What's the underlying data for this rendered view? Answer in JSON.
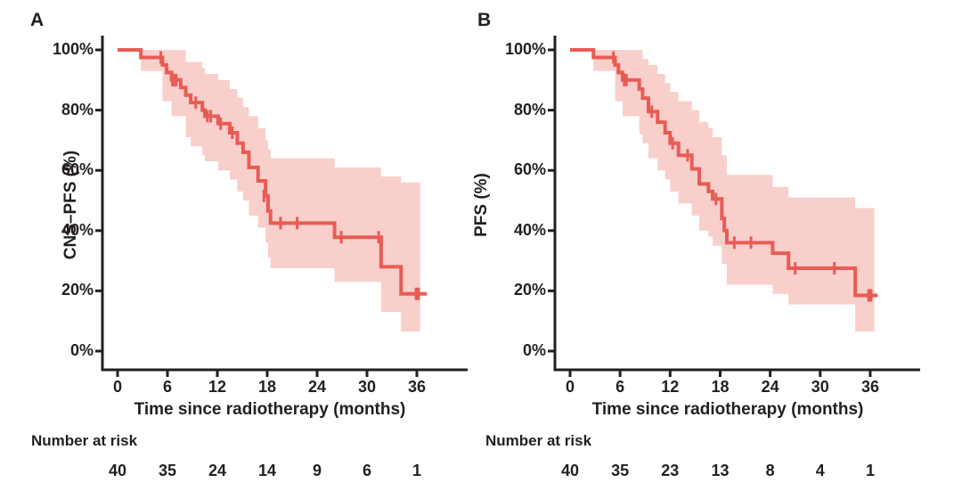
{
  "colors": {
    "curve": "#E85C55",
    "ci_band": "#F9CFCB",
    "axis_and_text": "#231F20",
    "background": "#FFFFFF"
  },
  "chart_data": [
    {
      "type": "line",
      "subtype": "kaplan_meier_step_curve_with_ci_band",
      "panel_label": "A",
      "ylabel": "CNS–PFS (%)",
      "x_axis": {
        "label": "Time since radiotherapy (months)",
        "ticks": [
          {
            "value": 0,
            "label": "0"
          },
          {
            "value": 6,
            "label": "6"
          },
          {
            "value": 12,
            "label": "12"
          },
          {
            "value": 18,
            "label": "18"
          },
          {
            "value": 24,
            "label": "24"
          },
          {
            "value": 30,
            "label": "30"
          },
          {
            "value": 36,
            "label": "36"
          }
        ],
        "xlim": [
          0,
          42
        ]
      },
      "y_axis": {
        "ticks": [
          {
            "value": 100,
            "label": "100%"
          },
          {
            "value": 80,
            "label": "80%"
          },
          {
            "value": 60,
            "label": "60%"
          },
          {
            "value": 40,
            "label": "40%"
          },
          {
            "value": 20,
            "label": "20%"
          },
          {
            "value": 0,
            "label": "0%"
          }
        ],
        "ylim": [
          0,
          100
        ]
      },
      "steps": [
        [
          0,
          100
        ],
        [
          2.8,
          97.5
        ],
        [
          5.4,
          95
        ],
        [
          5.9,
          92.5
        ],
        [
          6.5,
          90
        ],
        [
          7.6,
          87.5
        ],
        [
          8.2,
          85
        ],
        [
          8.8,
          82.5
        ],
        [
          10.2,
          80
        ],
        [
          10.5,
          78
        ],
        [
          12.1,
          75.5
        ],
        [
          13.5,
          72.5
        ],
        [
          14.4,
          69
        ],
        [
          15.1,
          66
        ],
        [
          15.8,
          61
        ],
        [
          16.9,
          56.5
        ],
        [
          17.8,
          51.5
        ],
        [
          18.1,
          46.5
        ],
        [
          18.4,
          42.5
        ],
        [
          26.1,
          37.8
        ],
        [
          31.7,
          28
        ],
        [
          34.1,
          19
        ]
      ],
      "curve_end": 37.2,
      "censors": [
        [
          5.2,
          97.5
        ],
        [
          6.6,
          90
        ],
        [
          6.8,
          90
        ],
        [
          7.05,
          90
        ],
        [
          9.4,
          82.5
        ],
        [
          10.8,
          78
        ],
        [
          11.2,
          78
        ],
        [
          12.4,
          75.5
        ],
        [
          13.8,
          72.5
        ],
        [
          17.6,
          51.5
        ],
        [
          19.6,
          42.5
        ],
        [
          21.6,
          42.5
        ],
        [
          26.9,
          37.8
        ],
        [
          31.4,
          37.8
        ],
        [
          35.9,
          19
        ],
        [
          36.2,
          19
        ]
      ],
      "ci_band": [
        [
          2.8,
          93,
          100
        ],
        [
          5.4,
          83,
          100
        ],
        [
          6.5,
          78,
          100
        ],
        [
          8.2,
          71,
          96
        ],
        [
          8.8,
          68,
          96
        ],
        [
          10.2,
          65,
          94
        ],
        [
          10.5,
          63,
          92
        ],
        [
          12.1,
          60,
          90
        ],
        [
          13.5,
          57,
          87
        ],
        [
          14.4,
          53,
          84
        ],
        [
          15.1,
          50,
          81
        ],
        [
          15.8,
          45,
          78
        ],
        [
          16.9,
          41,
          74
        ],
        [
          17.8,
          36,
          70
        ],
        [
          18.1,
          31,
          67
        ],
        [
          18.4,
          27.5,
          64
        ],
        [
          26.1,
          23,
          61
        ],
        [
          31.7,
          13,
          58
        ],
        [
          34.1,
          6.5,
          56
        ]
      ],
      "band_end": 36.4,
      "risk_table": {
        "title": "Number at risk",
        "times": [
          0,
          6,
          12,
          18,
          24,
          30,
          36
        ],
        "counts": [
          "40",
          "35",
          "24",
          "14",
          "9",
          "6",
          "1"
        ]
      }
    },
    {
      "type": "line",
      "subtype": "kaplan_meier_step_curve_with_ci_band",
      "panel_label": "B",
      "ylabel": "PFS (%)",
      "x_axis": {
        "label": "Time since radiotherapy (months)",
        "ticks": [
          {
            "value": 0,
            "label": "0"
          },
          {
            "value": 6,
            "label": "6"
          },
          {
            "value": 12,
            "label": "12"
          },
          {
            "value": 18,
            "label": "18"
          },
          {
            "value": 24,
            "label": "24"
          },
          {
            "value": 30,
            "label": "30"
          },
          {
            "value": 36,
            "label": "36"
          }
        ],
        "xlim": [
          0,
          42
        ]
      },
      "y_axis": {
        "ticks": [
          {
            "value": 100,
            "label": "100%"
          },
          {
            "value": 80,
            "label": "80%"
          },
          {
            "value": 60,
            "label": "60%"
          },
          {
            "value": 40,
            "label": "40%"
          },
          {
            "value": 20,
            "label": "20%"
          },
          {
            "value": 0,
            "label": "0%"
          }
        ],
        "ylim": [
          0,
          100
        ]
      },
      "steps": [
        [
          0,
          100
        ],
        [
          2.8,
          97.5
        ],
        [
          5.4,
          95
        ],
        [
          5.8,
          92.5
        ],
        [
          6.3,
          90
        ],
        [
          8.3,
          87
        ],
        [
          8.7,
          84
        ],
        [
          9.4,
          79.5
        ],
        [
          10.5,
          76
        ],
        [
          11.4,
          72.5
        ],
        [
          12.0,
          69
        ],
        [
          13.0,
          65
        ],
        [
          14.6,
          60.5
        ],
        [
          15.5,
          55.5
        ],
        [
          16.6,
          53
        ],
        [
          17.1,
          50.5
        ],
        [
          18.2,
          44
        ],
        [
          18.5,
          40
        ],
        [
          18.8,
          36
        ],
        [
          24.3,
          32.5
        ],
        [
          26.2,
          27.5
        ],
        [
          34.2,
          18.5
        ]
      ],
      "curve_end": 36.9,
      "censors": [
        [
          5.2,
          97.5
        ],
        [
          6.5,
          90
        ],
        [
          6.75,
          90
        ],
        [
          9.8,
          79.5
        ],
        [
          12.3,
          69
        ],
        [
          14.1,
          65
        ],
        [
          17.5,
          50.5
        ],
        [
          19.7,
          36
        ],
        [
          21.7,
          36
        ],
        [
          27.0,
          27.5
        ],
        [
          31.7,
          27.5
        ],
        [
          35.8,
          18.5
        ],
        [
          36.1,
          18.5
        ]
      ],
      "ci_band": [
        [
          2.8,
          93,
          100
        ],
        [
          5.4,
          83,
          100
        ],
        [
          6.3,
          78,
          100
        ],
        [
          8.3,
          72,
          100
        ],
        [
          8.7,
          69,
          97
        ],
        [
          9.4,
          64,
          95
        ],
        [
          10.5,
          60,
          92
        ],
        [
          11.4,
          57,
          89
        ],
        [
          12.0,
          53,
          86
        ],
        [
          13.0,
          49,
          83
        ],
        [
          14.6,
          45,
          80
        ],
        [
          15.5,
          40,
          76
        ],
        [
          16.6,
          38,
          74
        ],
        [
          17.1,
          35,
          71
        ],
        [
          18.2,
          29,
          65
        ],
        [
          18.8,
          22,
          58.5
        ],
        [
          24.3,
          19,
          54.5
        ],
        [
          26.2,
          15.5,
          51
        ],
        [
          34.2,
          6.5,
          47.5
        ]
      ],
      "band_end": 36.5,
      "risk_table": {
        "title": "Number at risk",
        "times": [
          0,
          6,
          12,
          18,
          24,
          30,
          36
        ],
        "counts": [
          "40",
          "35",
          "23",
          "13",
          "8",
          "4",
          "1"
        ]
      }
    }
  ]
}
